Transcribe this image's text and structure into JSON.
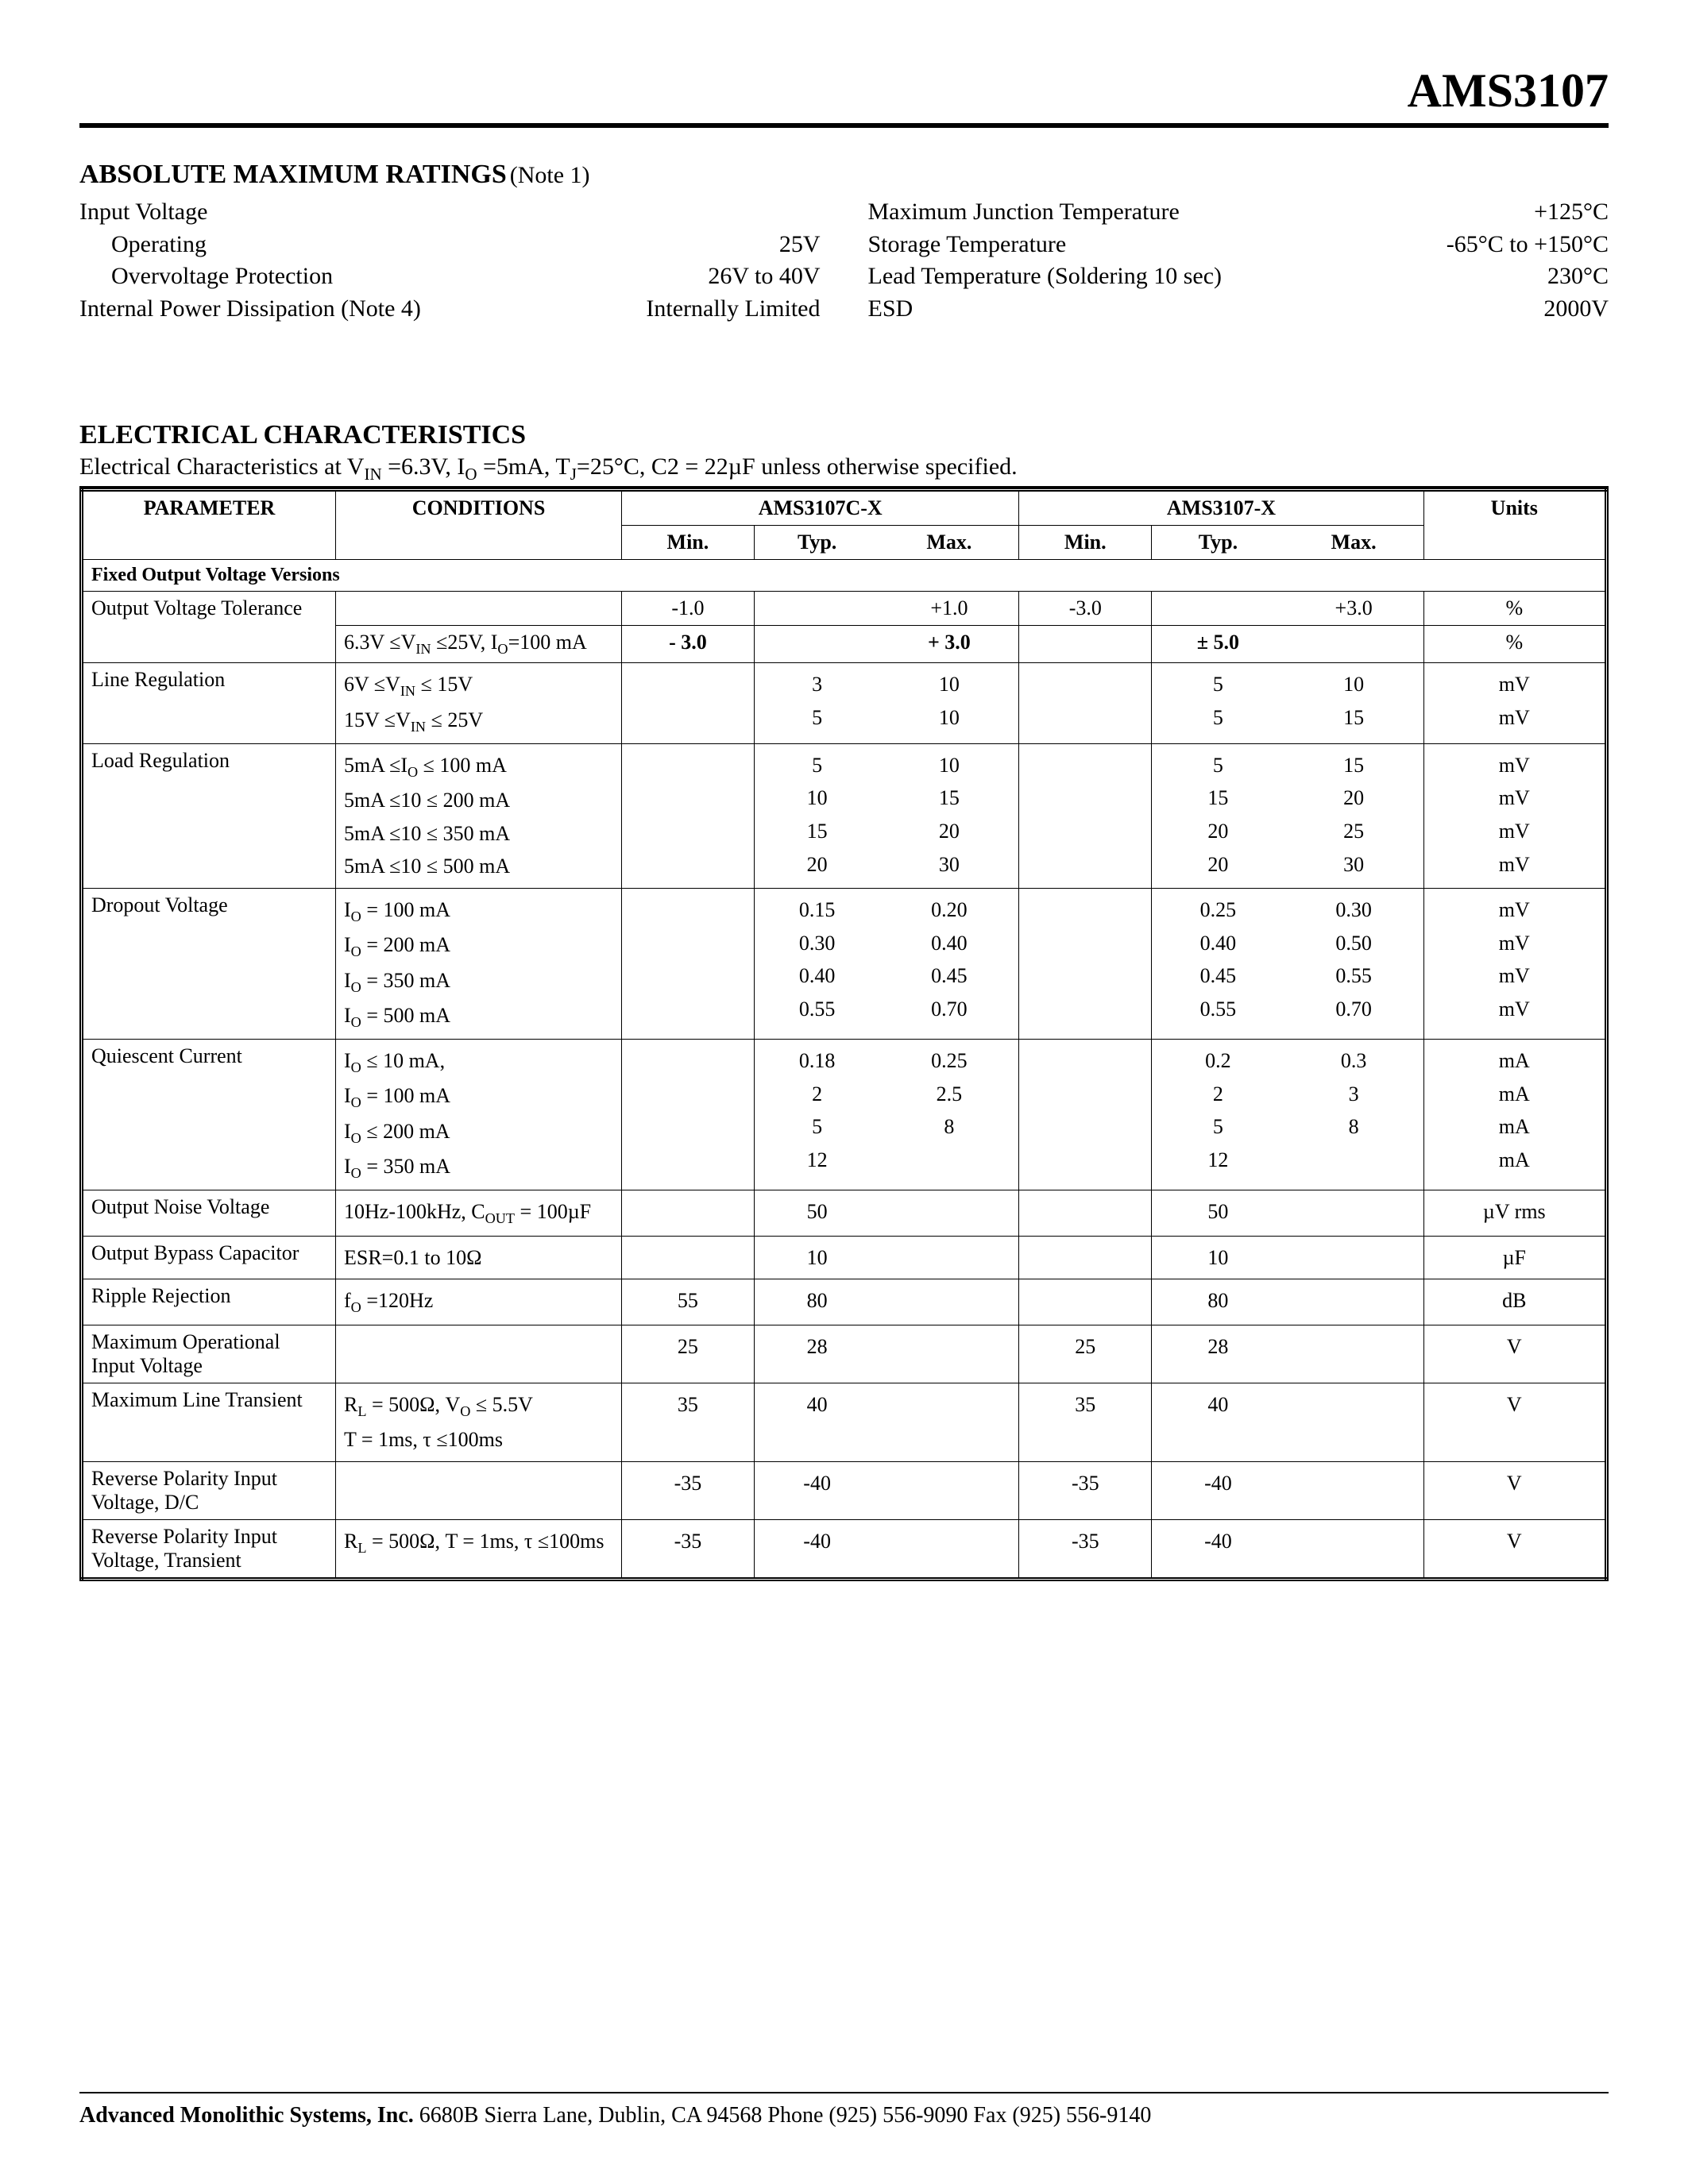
{
  "header": {
    "part_number": "AMS3107"
  },
  "amr": {
    "title": "ABSOLUTE MAXIMUM RATINGS",
    "note": "(Note 1)",
    "left": [
      {
        "label": "Input Voltage",
        "value": "",
        "indent": false
      },
      {
        "label": "Operating",
        "value": "25V",
        "indent": true
      },
      {
        "label": "Overvoltage Protection",
        "value": "26V to 40V",
        "indent": true
      },
      {
        "label": "Internal Power Dissipation (Note 4)",
        "value": "Internally Limited",
        "indent": false
      }
    ],
    "right": [
      {
        "label": "Maximum Junction Temperature",
        "value": "+125°C"
      },
      {
        "label": "Storage Temperature",
        "value": "-65°C to  +150°C"
      },
      {
        "label": "Lead Temperature (Soldering 10 sec)",
        "value": "230°C"
      },
      {
        "label": "ESD",
        "value": "2000V"
      }
    ]
  },
  "ec": {
    "title": "ELECTRICAL CHARACTERISTICS",
    "subtitle_pre": "Electrical Characteristics at V",
    "subtitle_post": " =6.3V, I",
    "subtitle_post2": " =5mA, T",
    "subtitle_post3": "=25°C, C2 = 22µF unless otherwise specified.",
    "headers": {
      "parameter": "PARAMETER",
      "conditions": "CONDITIONS",
      "groupA": "AMS3107C-X",
      "groupB": "AMS3107-X",
      "min": "Min.",
      "typ": "Typ.",
      "max": "Max.",
      "units": "Units"
    },
    "section_label": "Fixed Output Voltage Versions",
    "rows": [
      {
        "param": "Output Voltage Tolerance",
        "lines": [
          {
            "cond": "",
            "a": [
              "-1.0",
              "",
              "+1.0"
            ],
            "b": [
              "-3.0",
              "",
              "+3.0"
            ],
            "u": "%"
          },
          {
            "cond": "6.3V ≤V<sub>IN</sub> ≤25V, I<sub>O</sub>=100 mA",
            "a": [
              "- 3.0",
              "",
              "+ 3.0"
            ],
            "b": [
              "",
              "± 5.0",
              ""
            ],
            "u": "%",
            "bold": true,
            "sep": true
          }
        ]
      },
      {
        "param": "Line Regulation",
        "lines": [
          {
            "cond": "6V ≤V<sub>IN</sub> ≤ 15V",
            "a": [
              "",
              "3",
              "10"
            ],
            "b": [
              "",
              "5",
              "10"
            ],
            "u": "mV"
          },
          {
            "cond": "15V  ≤V<sub>IN</sub> ≤ 25V",
            "a": [
              "",
              "5",
              "10"
            ],
            "b": [
              "",
              "5",
              "15"
            ],
            "u": "mV"
          }
        ]
      },
      {
        "param": "Load Regulation",
        "lines": [
          {
            "cond": "5mA ≤I<sub>O</sub> ≤ 100 mA",
            "a": [
              "",
              "5",
              "10"
            ],
            "b": [
              "",
              "5",
              "15"
            ],
            "u": "mV"
          },
          {
            "cond": "5mA ≤10 ≤ 200 mA",
            "a": [
              "",
              "10",
              "15"
            ],
            "b": [
              "",
              "15",
              "20"
            ],
            "u": "mV"
          },
          {
            "cond": "5mA ≤10 ≤ 350 mA",
            "a": [
              "",
              "15",
              "20"
            ],
            "b": [
              "",
              "20",
              "25"
            ],
            "u": "mV"
          },
          {
            "cond": "5mA ≤10 ≤ 500 mA",
            "a": [
              "",
              "20",
              "30"
            ],
            "b": [
              "",
              "20",
              "30"
            ],
            "u": "mV"
          }
        ]
      },
      {
        "param": "Dropout Voltage",
        "lines": [
          {
            "cond": "I<sub>O</sub> = 100 mA",
            "a": [
              "",
              "0.15",
              "0.20"
            ],
            "b": [
              "",
              "0.25",
              "0.30"
            ],
            "u": "mV"
          },
          {
            "cond": "I<sub>O</sub> = 200 mA",
            "a": [
              "",
              "0.30",
              "0.40"
            ],
            "b": [
              "",
              "0.40",
              "0.50"
            ],
            "u": "mV"
          },
          {
            "cond": "I<sub>O</sub> = 350 mA",
            "a": [
              "",
              "0.40",
              "0.45"
            ],
            "b": [
              "",
              "0.45",
              "0.55"
            ],
            "u": "mV"
          },
          {
            "cond": "I<sub>O</sub> = 500 mA",
            "a": [
              "",
              "0.55",
              "0.70"
            ],
            "b": [
              "",
              "0.55",
              "0.70"
            ],
            "u": "mV"
          }
        ]
      },
      {
        "param": "Quiescent Current",
        "lines": [
          {
            "cond": "I<sub>O</sub> ≤ 10 mA,",
            "a": [
              "",
              "0.18",
              "0.25"
            ],
            "b": [
              "",
              "0.2",
              "0.3"
            ],
            "u": "mA"
          },
          {
            "cond": "I<sub>O</sub> = 100 mA",
            "a": [
              "",
              "2",
              "2.5"
            ],
            "b": [
              "",
              "2",
              "3"
            ],
            "u": "mA"
          },
          {
            "cond": "I<sub>O</sub> ≤ 200 mA",
            "a": [
              "",
              "5",
              "8"
            ],
            "b": [
              "",
              "5",
              "8"
            ],
            "u": "mA"
          },
          {
            "cond": "I<sub>O</sub> = 350 mA",
            "a": [
              "",
              "12",
              ""
            ],
            "b": [
              "",
              "12",
              ""
            ],
            "u": "mA"
          }
        ]
      },
      {
        "param": "Output Noise Voltage",
        "lines": [
          {
            "cond": "10Hz-100kHz, C<sub>OUT</sub> = 100µF",
            "a": [
              "",
              "50",
              ""
            ],
            "b": [
              "",
              "50",
              ""
            ],
            "u": "µV rms"
          }
        ]
      },
      {
        "param": "Output Bypass Capacitor",
        "lines": [
          {
            "cond": "ESR=0.1 to 10Ω",
            "a": [
              "",
              "10",
              ""
            ],
            "b": [
              "",
              "10",
              ""
            ],
            "u": "µF"
          }
        ]
      },
      {
        "param": "Ripple Rejection",
        "lines": [
          {
            "cond": "f<sub>O</sub> =120Hz",
            "a": [
              "55",
              "80",
              ""
            ],
            "b": [
              "",
              "80",
              ""
            ],
            "u": "dB"
          }
        ]
      },
      {
        "param": "Maximum Operational Input Voltage",
        "lines": [
          {
            "cond": "",
            "a": [
              "25",
              "28",
              ""
            ],
            "b": [
              "25",
              "28",
              ""
            ],
            "u": "V"
          }
        ]
      },
      {
        "param": "Maximum Line Transient",
        "lines": [
          {
            "cond": "R<sub>L</sub> = 500Ω, V<sub>O</sub> ≤ 5.5V<br>T = 1ms, τ ≤100ms",
            "a": [
              "35",
              "40",
              ""
            ],
            "b": [
              "35",
              "40",
              ""
            ],
            "u": "V"
          }
        ]
      },
      {
        "param": "Reverse Polarity Input Voltage, D/C",
        "lines": [
          {
            "cond": "",
            "a": [
              "-35",
              "-40",
              ""
            ],
            "b": [
              "-35",
              "-40",
              ""
            ],
            "u": "V"
          }
        ]
      },
      {
        "param": "Reverse Polarity Input Voltage, Transient",
        "lines": [
          {
            "cond": "R<sub>L</sub> = 500Ω, T = 1ms, τ ≤100ms",
            "a": [
              "-35",
              "-40",
              ""
            ],
            "b": [
              "-35",
              "-40",
              ""
            ],
            "u": "V"
          }
        ]
      }
    ]
  },
  "footer": {
    "company": "Advanced Monolithic Systems, Inc.",
    "rest": "   6680B Sierra Lane, Dublin, CA  94568   Phone (925) 556-9090   Fax (925) 556-9140"
  }
}
